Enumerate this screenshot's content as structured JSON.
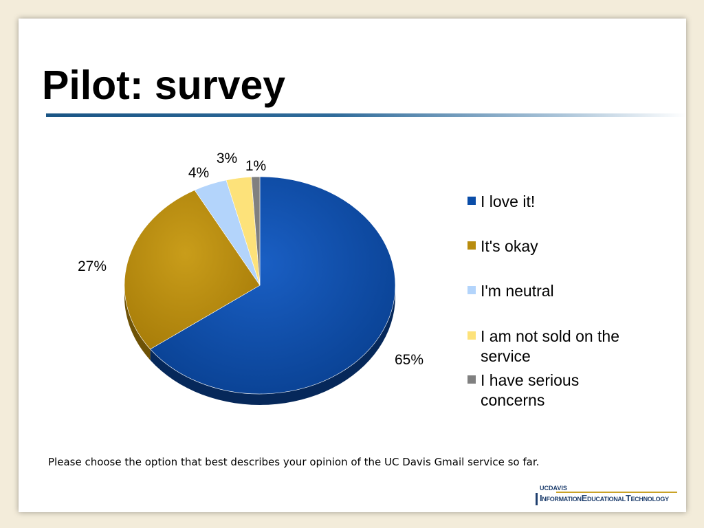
{
  "slide": {
    "title": "Pilot: survey",
    "caption": "Please choose the option that best describes your opinion of the UC Davis Gmail service so far."
  },
  "logo": {
    "uc": "UCDAVIS",
    "text": "InformationEducationalTechnology"
  },
  "chart_data": {
    "type": "pie",
    "title": "",
    "series": [
      {
        "labels": [
          "I love it!",
          "It's okay",
          "I'm neutral",
          "I am not sold on the service",
          "I have serious concerns"
        ],
        "values": [
          65,
          27,
          4,
          3,
          1
        ],
        "value_labels": [
          "65%",
          "27%",
          "4%",
          "3%",
          "1%"
        ]
      }
    ],
    "legend_placement": "right",
    "three_d": true,
    "colors": [
      "#0a4da8",
      "#b88c0e",
      "#b3d4fb",
      "#fde27a",
      "#808080"
    ]
  }
}
